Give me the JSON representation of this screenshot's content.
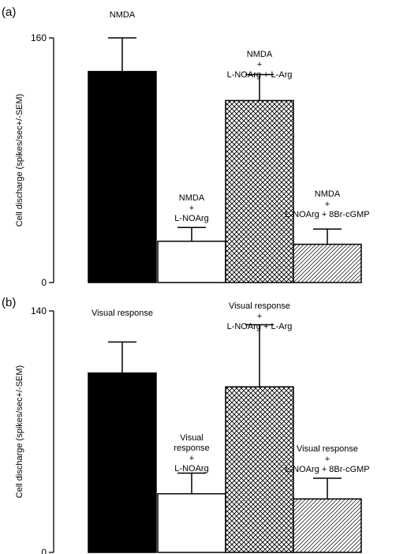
{
  "chart_data": [
    {
      "panel_label": "(a)",
      "type": "bar",
      "ylabel": "Cell discharge (spikes/sec+/-SEM)",
      "ylim": [
        0,
        160
      ],
      "y_ticks": [
        "0",
        "160"
      ],
      "bars": [
        {
          "label_lines": [
            "NMDA"
          ],
          "value": 138,
          "error": 22,
          "fill": "solid-black"
        },
        {
          "label_lines": [
            "NMDA",
            "+",
            "L-NOArg"
          ],
          "value": 27,
          "error": 9,
          "fill": "white"
        },
        {
          "label_lines": [
            "NMDA",
            "+",
            "L-NOArg + L-Arg"
          ],
          "value": 119,
          "error": 17,
          "fill": "crosshatch"
        },
        {
          "label_lines": [
            "NMDA",
            "+",
            "L-NOArg + 8Br-cGMP"
          ],
          "value": 25,
          "error": 10,
          "fill": "diagonal-hatch"
        }
      ]
    },
    {
      "panel_label": "(b)",
      "type": "bar",
      "ylabel": "Cell discharge (spikes/sec+/-SEM)",
      "ylim": [
        0,
        140
      ],
      "y_ticks": [
        "0",
        "140"
      ],
      "bars": [
        {
          "label_lines": [
            "Visual response"
          ],
          "value": 104,
          "error": 18,
          "fill": "solid-black"
        },
        {
          "label_lines": [
            "Visual",
            "response",
            "+",
            "L-NOArg"
          ],
          "value": 34,
          "error": 12,
          "fill": "white"
        },
        {
          "label_lines": [
            "Visual response",
            "+",
            "L-NOArg + L-Arg"
          ],
          "value": 96,
          "error": 36,
          "fill": "crosshatch"
        },
        {
          "label_lines": [
            "Visual response",
            "+",
            "L-NOArg + 8Br-cGMP"
          ],
          "value": 31,
          "error": 12,
          "fill": "diagonal-hatch"
        }
      ]
    }
  ]
}
